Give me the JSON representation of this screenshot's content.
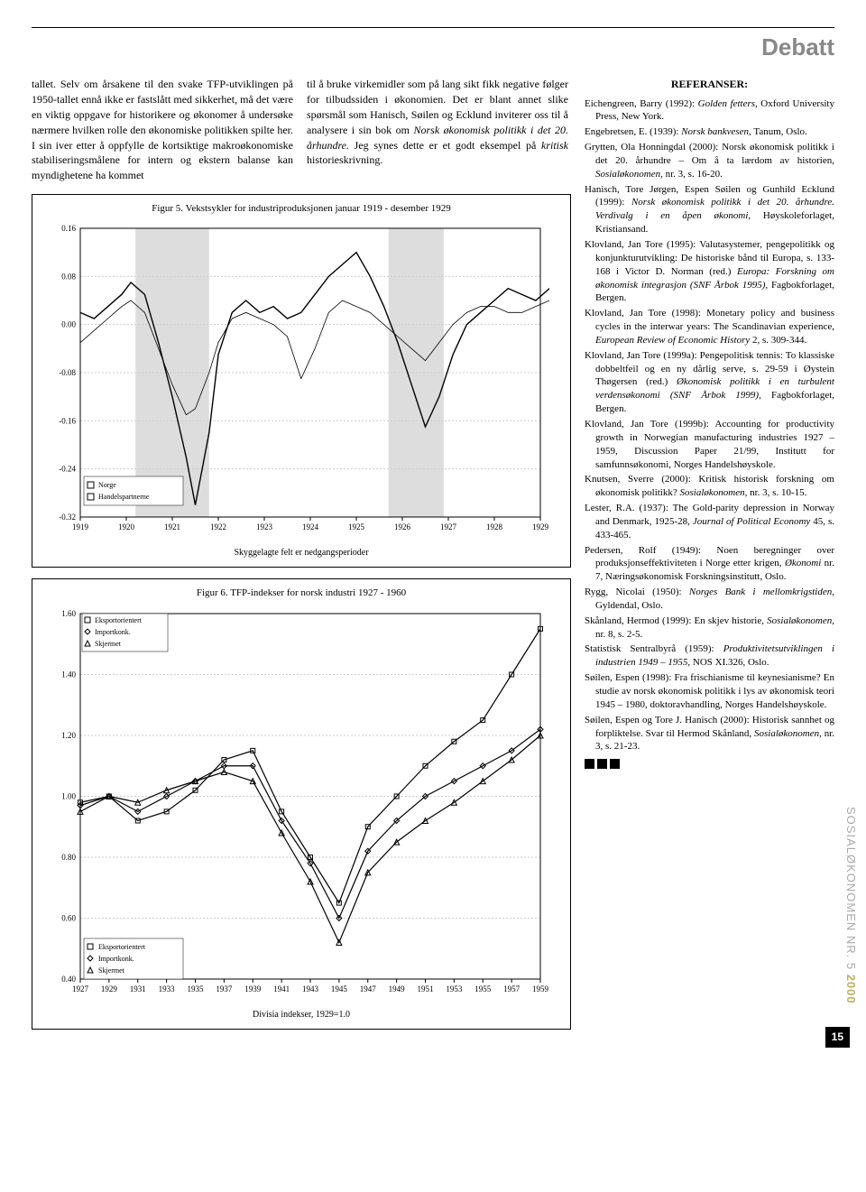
{
  "header": "Debatt",
  "col_left": "tallet. Selv om årsakene til den svake TFP-utviklingen på 1950-tallet ennå ikke er fastslått med sikkerhet, må det være en viktig oppgave for historikere og økonomer å undersøke nærmere hvilken rolle den økonomiske politikken spilte her. I sin iver etter å oppfylle de kortsiktige makroøkonomiske stabiliseringsmålene for intern og ekstern balanse kan myndighetene ha kommet",
  "col_mid_p1": "til å bruke virkemidler som på lang sikt fikk negative følger for tilbudssiden i økonomien. Det er blant annet slike spørsmål som Hanisch, Søilen og Ecklund inviterer oss til å analysere i sin bok om ",
  "col_mid_em1": "Norsk økonomisk politikk i det 20. århundre.",
  "col_mid_p2": " Jeg synes dette er et godt eksempel på ",
  "col_mid_em2": "kritisk",
  "col_mid_p3": " historieskrivning.",
  "ref_title": "REFERANSER:",
  "references": [
    {
      "pre": "Eichengreen, Barry (1992): ",
      "em": "Golden fetters,",
      "post": " Oxford University Press, New York."
    },
    {
      "pre": "Engebretsen, E. (1939): ",
      "em": "Norsk bankvesen,",
      "post": " Tanum, Oslo."
    },
    {
      "pre": "Grytten, Ola Honningdal (2000): Norsk økonomisk politikk i det 20. århundre – Om å ta lærdom av historien, ",
      "em": "Sosialøkonomen,",
      "post": " nr. 3, s. 16-20."
    },
    {
      "pre": "Hanisch, Tore Jørgen, Espen Søilen og Gunhild Ecklund (1999): ",
      "em": "Norsk økonomisk politikk i det 20. århundre. Verdivalg i en åpen økonomi,",
      "post": " Høyskoleforlaget, Kristiansand."
    },
    {
      "pre": "Klovland, Jan Tore (1995): Valutasystemer, pengepolitikk og konjunkturutvikling: De historiske bånd til Europa, s. 133-168 i Victor D. Norman (red.) ",
      "em": "Europa: Forskning om økonomisk integrasjon (SNF Årbok 1995),",
      "post": " Fagbokforlaget, Bergen."
    },
    {
      "pre": "Klovland, Jan Tore (1998): Monetary policy and business cycles in the interwar years: The Scandinavian experience, ",
      "em": "European Review of Economic History",
      "post": " 2, s. 309-344."
    },
    {
      "pre": "Klovland, Jan Tore (1999a): Pengepolitisk tennis: To klassiske dobbeltfeil og en ny dårlig serve, s. 29-59 i Øystein Thøgersen (red.) ",
      "em": "Økonomisk politikk i en turbulent verdensøkonomi (SNF Årbok 1999),",
      "post": " Fagbokforlaget, Bergen."
    },
    {
      "pre": "Klovland, Jan Tore (1999b): Accounting for productivity growth in Norwegian manufacturing industries 1927 – 1959, Discussion Paper 21/99, Institutt for samfunnsøkonomi, Norges Handelshøyskole.",
      "em": "",
      "post": ""
    },
    {
      "pre": "Knutsen, Sverre (2000): Kritisk historisk forskning om økonomisk politikk? ",
      "em": "Sosialøkonomen,",
      "post": " nr. 3, s. 10-15."
    },
    {
      "pre": "Lester, R.A. (1937): The Gold-parity depression in Norway and Denmark, 1925-28, ",
      "em": "Journal of Political Economy",
      "post": " 45, s. 433-465."
    },
    {
      "pre": "Pedersen, Rolf (1949): Noen beregninger over produksjonseffektiviteten i Norge etter krigen, ",
      "em": "Økonomi",
      "post": " nr. 7, Næringsøkonomisk Forskningsinstitutt, Oslo."
    },
    {
      "pre": "Rygg, Nicolai (1950): ",
      "em": "Norges Bank i mellomkrigstiden,",
      "post": " Gyldendal, Oslo."
    },
    {
      "pre": "Skånland, Hermod (1999): En skjev historie, ",
      "em": "Sosialøkonomen,",
      "post": " nr. 8, s. 2-5."
    },
    {
      "pre": "Statistisk Sentralbyrå (1959): ",
      "em": "Produktivitetsutviklingen i industrien 1949 – 1955,",
      "post": " NOS XI.326, Oslo."
    },
    {
      "pre": "Søilen, Espen (1998): Fra frischianisme til keynesianisme? En studie av norsk økonomisk politikk i lys av økonomisk teori 1945 – 1980, doktoravhandling, Norges Handelshøyskole.",
      "em": "",
      "post": ""
    },
    {
      "pre": "Søilen, Espen og Tore J. Hanisch (2000): Historisk sannhet og forpliktelse. Svar til Hermod Skånland, ",
      "em": "Sosialøkonomen,",
      "post": " nr. 3, s. 21-23."
    }
  ],
  "fig5": {
    "title": "Figur 5. Vekstsykler for industriproduksjonen januar 1919 - desember 1929",
    "caption": "Skyggelagte felt er nedgangsperioder",
    "legend": [
      "Norge",
      "Handelspartnerne"
    ],
    "ylim": [
      -0.32,
      0.16
    ],
    "yticks": [
      -0.32,
      -0.24,
      -0.16,
      -0.08,
      0.0,
      0.08,
      0.16
    ],
    "xticks": [
      1919,
      1920,
      1921,
      1922,
      1923,
      1924,
      1925,
      1926,
      1927,
      1928,
      1929
    ],
    "background": "#ffffff",
    "grid_color": "#cccccc",
    "series1_color": "#000000",
    "series2_color": "#000000",
    "shade_color": "#dddddd",
    "shaded_regions": [
      [
        1920.2,
        1921.8
      ],
      [
        1925.7,
        1926.9
      ]
    ],
    "norge": [
      [
        1919.0,
        0.02
      ],
      [
        1919.3,
        0.01
      ],
      [
        1919.6,
        0.03
      ],
      [
        1919.9,
        0.05
      ],
      [
        1920.1,
        0.07
      ],
      [
        1920.4,
        0.05
      ],
      [
        1920.7,
        -0.03
      ],
      [
        1921.0,
        -0.12
      ],
      [
        1921.3,
        -0.22
      ],
      [
        1921.5,
        -0.3
      ],
      [
        1921.8,
        -0.18
      ],
      [
        1922.0,
        -0.05
      ],
      [
        1922.3,
        0.02
      ],
      [
        1922.6,
        0.04
      ],
      [
        1922.9,
        0.02
      ],
      [
        1923.2,
        0.03
      ],
      [
        1923.5,
        0.01
      ],
      [
        1923.8,
        0.02
      ],
      [
        1924.1,
        0.05
      ],
      [
        1924.4,
        0.08
      ],
      [
        1924.7,
        0.1
      ],
      [
        1925.0,
        0.12
      ],
      [
        1925.3,
        0.08
      ],
      [
        1925.6,
        0.03
      ],
      [
        1925.9,
        -0.03
      ],
      [
        1926.2,
        -0.1
      ],
      [
        1926.5,
        -0.17
      ],
      [
        1926.8,
        -0.12
      ],
      [
        1927.1,
        -0.05
      ],
      [
        1927.4,
        0.0
      ],
      [
        1927.7,
        0.02
      ],
      [
        1928.0,
        0.04
      ],
      [
        1928.3,
        0.06
      ],
      [
        1928.6,
        0.05
      ],
      [
        1928.9,
        0.04
      ],
      [
        1929.2,
        0.06
      ],
      [
        1929.5,
        0.08
      ],
      [
        1929.8,
        0.1
      ]
    ],
    "handelspartnerne": [
      [
        1919.0,
        -0.03
      ],
      [
        1919.3,
        -0.01
      ],
      [
        1919.6,
        0.01
      ],
      [
        1919.9,
        0.03
      ],
      [
        1920.1,
        0.04
      ],
      [
        1920.4,
        0.02
      ],
      [
        1920.7,
        -0.04
      ],
      [
        1921.0,
        -0.1
      ],
      [
        1921.3,
        -0.15
      ],
      [
        1921.5,
        -0.14
      ],
      [
        1921.8,
        -0.08
      ],
      [
        1922.0,
        -0.03
      ],
      [
        1922.3,
        0.01
      ],
      [
        1922.6,
        0.02
      ],
      [
        1922.9,
        0.01
      ],
      [
        1923.2,
        0.0
      ],
      [
        1923.5,
        -0.02
      ],
      [
        1923.8,
        -0.09
      ],
      [
        1924.1,
        -0.04
      ],
      [
        1924.4,
        0.02
      ],
      [
        1924.7,
        0.04
      ],
      [
        1925.0,
        0.03
      ],
      [
        1925.3,
        0.02
      ],
      [
        1925.6,
        0.0
      ],
      [
        1925.9,
        -0.02
      ],
      [
        1926.2,
        -0.04
      ],
      [
        1926.5,
        -0.06
      ],
      [
        1926.8,
        -0.03
      ],
      [
        1927.1,
        0.0
      ],
      [
        1927.4,
        0.02
      ],
      [
        1927.7,
        0.03
      ],
      [
        1928.0,
        0.03
      ],
      [
        1928.3,
        0.02
      ],
      [
        1928.6,
        0.02
      ],
      [
        1928.9,
        0.03
      ],
      [
        1929.2,
        0.04
      ],
      [
        1929.5,
        0.05
      ],
      [
        1929.8,
        0.06
      ]
    ]
  },
  "fig6": {
    "title": "Figur 6. TFP-indekser for norsk industri 1927 - 1960",
    "caption": "Divisia indekser, 1929=1.0",
    "legend": [
      "Eksportorientert",
      "Importkonk.",
      "Skjermet"
    ],
    "ylim": [
      0.4,
      1.6
    ],
    "yticks": [
      0.4,
      0.6,
      0.8,
      1.0,
      1.2,
      1.4,
      1.6
    ],
    "xticks": [
      1927,
      1929,
      1931,
      1933,
      1935,
      1937,
      1939,
      1941,
      1943,
      1945,
      1947,
      1949,
      1951,
      1953,
      1955,
      1957,
      1959
    ],
    "background": "#ffffff",
    "grid_color": "#cccccc",
    "colors": [
      "#000000",
      "#000000",
      "#000000"
    ],
    "markers": [
      "square",
      "diamond",
      "triangle"
    ],
    "eksport": [
      [
        1927,
        0.98
      ],
      [
        1929,
        1.0
      ],
      [
        1931,
        0.92
      ],
      [
        1933,
        0.95
      ],
      [
        1935,
        1.02
      ],
      [
        1937,
        1.12
      ],
      [
        1939,
        1.15
      ],
      [
        1941,
        0.95
      ],
      [
        1943,
        0.8
      ],
      [
        1945,
        0.65
      ],
      [
        1947,
        0.9
      ],
      [
        1949,
        1.0
      ],
      [
        1951,
        1.1
      ],
      [
        1953,
        1.18
      ],
      [
        1955,
        1.25
      ],
      [
        1957,
        1.4
      ],
      [
        1959,
        1.55
      ]
    ],
    "import": [
      [
        1927,
        0.97
      ],
      [
        1929,
        1.0
      ],
      [
        1931,
        0.95
      ],
      [
        1933,
        1.0
      ],
      [
        1935,
        1.05
      ],
      [
        1937,
        1.1
      ],
      [
        1939,
        1.1
      ],
      [
        1941,
        0.92
      ],
      [
        1943,
        0.78
      ],
      [
        1945,
        0.6
      ],
      [
        1947,
        0.82
      ],
      [
        1949,
        0.92
      ],
      [
        1951,
        1.0
      ],
      [
        1953,
        1.05
      ],
      [
        1955,
        1.1
      ],
      [
        1957,
        1.15
      ],
      [
        1959,
        1.22
      ]
    ],
    "skjermet": [
      [
        1927,
        0.95
      ],
      [
        1929,
        1.0
      ],
      [
        1931,
        0.98
      ],
      [
        1933,
        1.02
      ],
      [
        1935,
        1.05
      ],
      [
        1937,
        1.08
      ],
      [
        1939,
        1.05
      ],
      [
        1941,
        0.88
      ],
      [
        1943,
        0.72
      ],
      [
        1945,
        0.52
      ],
      [
        1947,
        0.75
      ],
      [
        1949,
        0.85
      ],
      [
        1951,
        0.92
      ],
      [
        1953,
        0.98
      ],
      [
        1955,
        1.05
      ],
      [
        1957,
        1.12
      ],
      [
        1959,
        1.2
      ]
    ]
  },
  "side_text_grey": "SOSIALØKONOMEN NR. 5 ",
  "side_text_year": "2000",
  "page_number": "15"
}
